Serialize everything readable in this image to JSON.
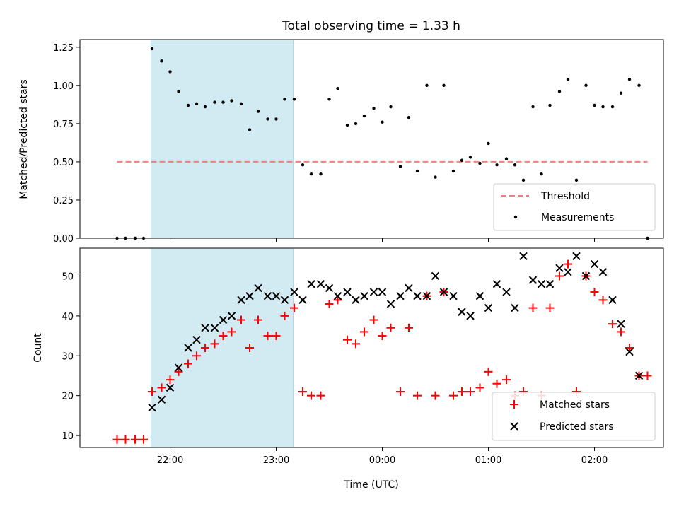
{
  "chart_data": {
    "title": "Total observing time = 1.33 h",
    "xlabel": "Time (UTC)",
    "x_ticks": [
      "22:00",
      "23:00",
      "00:00",
      "01:00",
      "02:00"
    ],
    "x_tick_hours": [
      22,
      23,
      24,
      25,
      26
    ],
    "xlim_hours": [
      21.15,
      26.65
    ],
    "shaded_span_hours": [
      21.82,
      23.16
    ],
    "colors": {
      "threshold": "#f08080",
      "measurements": "#000000",
      "matched": "#ff0000",
      "predicted": "#000000",
      "shade": "#add8e6"
    },
    "panels": [
      {
        "type": "scatter",
        "ylabel": "Matched/Predicted stars",
        "ylim": [
          0,
          1.3
        ],
        "yticks": [
          0.0,
          0.25,
          0.5,
          0.75,
          1.0,
          1.25
        ],
        "ytick_labels": [
          "0.00",
          "0.25",
          "0.50",
          "0.75",
          "1.00",
          "1.25"
        ],
        "legend_position": "lower-right",
        "threshold": {
          "name": "Threshold",
          "value": 0.5,
          "x_range_hours": [
            21.5,
            26.5
          ]
        },
        "series": [
          {
            "name": "Measurements",
            "points": [
              [
                21.5,
                0
              ],
              [
                21.58,
                0
              ],
              [
                21.67,
                0
              ],
              [
                21.75,
                0
              ],
              [
                21.83,
                1.24
              ],
              [
                21.92,
                1.16
              ],
              [
                22.0,
                1.09
              ],
              [
                22.08,
                0.96
              ],
              [
                22.17,
                0.87
              ],
              [
                22.25,
                0.88
              ],
              [
                22.33,
                0.86
              ],
              [
                22.42,
                0.89
              ],
              [
                22.5,
                0.89
              ],
              [
                22.58,
                0.9
              ],
              [
                22.67,
                0.88
              ],
              [
                22.75,
                0.71
              ],
              [
                22.83,
                0.83
              ],
              [
                22.92,
                0.78
              ],
              [
                23.0,
                0.78
              ],
              [
                23.08,
                0.91
              ],
              [
                23.17,
                0.91
              ],
              [
                23.25,
                0.48
              ],
              [
                23.33,
                0.42
              ],
              [
                23.42,
                0.42
              ],
              [
                23.5,
                0.91
              ],
              [
                23.58,
                0.98
              ],
              [
                23.67,
                0.74
              ],
              [
                23.75,
                0.75
              ],
              [
                23.83,
                0.8
              ],
              [
                23.92,
                0.85
              ],
              [
                24.0,
                0.76
              ],
              [
                24.08,
                0.86
              ],
              [
                24.17,
                0.47
              ],
              [
                24.25,
                0.79
              ],
              [
                24.33,
                0.44
              ],
              [
                24.42,
                1.0
              ],
              [
                24.5,
                0.4
              ],
              [
                24.58,
                1.0
              ],
              [
                24.67,
                0.44
              ],
              [
                24.75,
                0.51
              ],
              [
                24.83,
                0.53
              ],
              [
                24.92,
                0.49
              ],
              [
                25.0,
                0.62
              ],
              [
                25.08,
                0.48
              ],
              [
                25.17,
                0.52
              ],
              [
                25.25,
                0.48
              ],
              [
                25.33,
                0.38
              ],
              [
                25.42,
                0.86
              ],
              [
                25.5,
                0.42
              ],
              [
                25.58,
                0.87
              ],
              [
                25.67,
                0.96
              ],
              [
                25.75,
                1.04
              ],
              [
                25.83,
                0.38
              ],
              [
                25.92,
                1.0
              ],
              [
                26.0,
                0.87
              ],
              [
                26.08,
                0.86
              ],
              [
                26.17,
                0.86
              ],
              [
                26.25,
                0.95
              ],
              [
                26.33,
                1.04
              ],
              [
                26.42,
                1.0
              ],
              [
                26.5,
                0.0
              ]
            ]
          }
        ]
      },
      {
        "type": "scatter",
        "ylabel": "Count",
        "ylim": [
          7,
          57
        ],
        "yticks": [
          10,
          20,
          30,
          40,
          50
        ],
        "ytick_labels": [
          "10",
          "20",
          "30",
          "40",
          "50"
        ],
        "legend_position": "lower-right",
        "series": [
          {
            "name": "Matched stars",
            "marker": "plus",
            "points": [
              [
                21.5,
                9
              ],
              [
                21.58,
                9
              ],
              [
                21.67,
                9
              ],
              [
                21.75,
                9
              ],
              [
                21.83,
                21
              ],
              [
                21.92,
                22
              ],
              [
                22.0,
                24
              ],
              [
                22.08,
                26
              ],
              [
                22.17,
                28
              ],
              [
                22.25,
                30
              ],
              [
                22.33,
                32
              ],
              [
                22.42,
                33
              ],
              [
                22.5,
                35
              ],
              [
                22.58,
                36
              ],
              [
                22.67,
                39
              ],
              [
                22.75,
                32
              ],
              [
                22.83,
                39
              ],
              [
                22.92,
                35
              ],
              [
                23.0,
                35
              ],
              [
                23.08,
                40
              ],
              [
                23.17,
                42
              ],
              [
                23.25,
                21
              ],
              [
                23.33,
                20
              ],
              [
                23.42,
                20
              ],
              [
                23.5,
                43
              ],
              [
                23.58,
                44
              ],
              [
                23.67,
                34
              ],
              [
                23.75,
                33
              ],
              [
                23.83,
                36
              ],
              [
                23.92,
                39
              ],
              [
                24.0,
                35
              ],
              [
                24.08,
                37
              ],
              [
                24.17,
                21
              ],
              [
                24.25,
                37
              ],
              [
                24.33,
                20
              ],
              [
                24.42,
                45
              ],
              [
                24.5,
                20
              ],
              [
                24.58,
                46
              ],
              [
                24.67,
                20
              ],
              [
                24.75,
                21
              ],
              [
                24.83,
                21
              ],
              [
                24.92,
                22
              ],
              [
                25.0,
                26
              ],
              [
                25.08,
                23
              ],
              [
                25.17,
                24
              ],
              [
                25.25,
                20
              ],
              [
                25.33,
                21
              ],
              [
                25.42,
                42
              ],
              [
                25.5,
                20
              ],
              [
                25.58,
                42
              ],
              [
                25.67,
                50
              ],
              [
                25.75,
                53
              ],
              [
                25.83,
                21
              ],
              [
                25.92,
                50
              ],
              [
                26.0,
                46
              ],
              [
                26.08,
                44
              ],
              [
                26.17,
                38
              ],
              [
                26.25,
                36
              ],
              [
                26.33,
                32
              ],
              [
                26.42,
                25
              ],
              [
                26.5,
                25
              ]
            ]
          },
          {
            "name": "Predicted stars",
            "marker": "x",
            "points": [
              [
                21.83,
                17
              ],
              [
                21.92,
                19
              ],
              [
                22.0,
                22
              ],
              [
                22.08,
                27
              ],
              [
                22.17,
                32
              ],
              [
                22.25,
                34
              ],
              [
                22.33,
                37
              ],
              [
                22.42,
                37
              ],
              [
                22.5,
                39
              ],
              [
                22.58,
                40
              ],
              [
                22.67,
                44
              ],
              [
                22.75,
                45
              ],
              [
                22.83,
                47
              ],
              [
                22.92,
                45
              ],
              [
                23.0,
                45
              ],
              [
                23.08,
                44
              ],
              [
                23.17,
                46
              ],
              [
                23.25,
                44
              ],
              [
                23.33,
                48
              ],
              [
                23.42,
                48
              ],
              [
                23.5,
                47
              ],
              [
                23.58,
                45
              ],
              [
                23.67,
                46
              ],
              [
                23.75,
                44
              ],
              [
                23.83,
                45
              ],
              [
                23.92,
                46
              ],
              [
                24.0,
                46
              ],
              [
                24.08,
                43
              ],
              [
                24.17,
                45
              ],
              [
                24.25,
                47
              ],
              [
                24.33,
                45
              ],
              [
                24.42,
                45
              ],
              [
                24.5,
                50
              ],
              [
                24.58,
                46
              ],
              [
                24.67,
                45
              ],
              [
                24.75,
                41
              ],
              [
                24.83,
                40
              ],
              [
                24.92,
                45
              ],
              [
                25.0,
                42
              ],
              [
                25.08,
                48
              ],
              [
                25.17,
                46
              ],
              [
                25.25,
                42
              ],
              [
                25.33,
                55
              ],
              [
                25.42,
                49
              ],
              [
                25.5,
                48
              ],
              [
                25.58,
                48
              ],
              [
                25.67,
                52
              ],
              [
                25.75,
                51
              ],
              [
                25.83,
                55
              ],
              [
                25.92,
                50
              ],
              [
                26.0,
                53
              ],
              [
                26.08,
                51
              ],
              [
                26.17,
                44
              ],
              [
                26.25,
                38
              ],
              [
                26.33,
                31
              ],
              [
                26.42,
                25
              ]
            ]
          }
        ]
      }
    ]
  }
}
